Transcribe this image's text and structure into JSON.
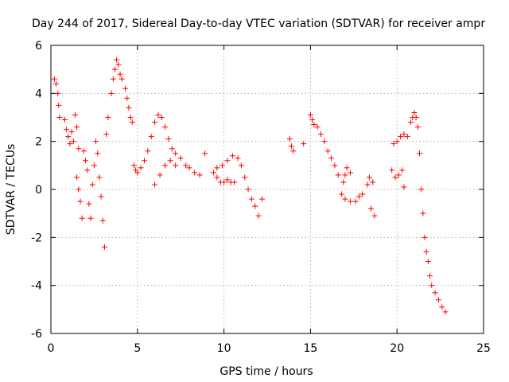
{
  "chart_data": {
    "type": "scatter",
    "title": "Day 244 of 2017, Sidereal Day-to-day VTEC variation (SDTVAR) for receiver ampr",
    "xlabel": "GPS time / hours",
    "ylabel": "SDTVAR / TECUs",
    "xlim": [
      0,
      25
    ],
    "ylim": [
      -6,
      6
    ],
    "x_ticks": [
      0,
      5,
      10,
      15,
      20,
      25
    ],
    "y_ticks": [
      -6,
      -4,
      -2,
      0,
      2,
      4,
      6
    ],
    "grid": true,
    "marker": "plus",
    "colors": {
      "points": "#ff0000",
      "axes": "#000000",
      "grid": "#a0a0a0",
      "background": "#ffffff"
    },
    "series": [
      {
        "name": "SDTVAR",
        "points": [
          [
            0.2,
            4.6
          ],
          [
            0.3,
            4.4
          ],
          [
            0.4,
            4.0
          ],
          [
            0.45,
            3.5
          ],
          [
            0.5,
            3.0
          ],
          [
            0.8,
            2.9
          ],
          [
            0.9,
            2.5
          ],
          [
            1.0,
            2.2
          ],
          [
            1.1,
            1.9
          ],
          [
            1.2,
            2.4
          ],
          [
            1.3,
            2.0
          ],
          [
            1.4,
            3.1
          ],
          [
            1.5,
            2.6
          ],
          [
            1.6,
            1.7
          ],
          [
            1.5,
            0.5
          ],
          [
            1.6,
            0.0
          ],
          [
            1.7,
            -0.5
          ],
          [
            1.8,
            -1.2
          ],
          [
            1.9,
            1.6
          ],
          [
            2.0,
            1.2
          ],
          [
            2.1,
            0.8
          ],
          [
            2.2,
            -0.6
          ],
          [
            2.3,
            -1.2
          ],
          [
            2.4,
            0.2
          ],
          [
            2.5,
            1.0
          ],
          [
            2.6,
            2.0
          ],
          [
            2.7,
            1.5
          ],
          [
            2.8,
            0.5
          ],
          [
            2.9,
            -0.3
          ],
          [
            3.0,
            -1.3
          ],
          [
            3.1,
            -2.4
          ],
          [
            3.2,
            2.3
          ],
          [
            3.3,
            3.0
          ],
          [
            3.5,
            4.0
          ],
          [
            3.6,
            4.6
          ],
          [
            3.7,
            5.0
          ],
          [
            3.8,
            5.4
          ],
          [
            3.9,
            5.2
          ],
          [
            4.0,
            4.8
          ],
          [
            4.1,
            4.6
          ],
          [
            4.3,
            4.2
          ],
          [
            4.4,
            3.8
          ],
          [
            4.5,
            3.4
          ],
          [
            4.6,
            3.0
          ],
          [
            4.7,
            2.8
          ],
          [
            4.8,
            1.0
          ],
          [
            4.9,
            0.8
          ],
          [
            5.0,
            0.7
          ],
          [
            5.2,
            0.9
          ],
          [
            5.4,
            1.2
          ],
          [
            5.6,
            1.6
          ],
          [
            5.8,
            2.2
          ],
          [
            6.0,
            2.8
          ],
          [
            6.2,
            3.1
          ],
          [
            6.4,
            3.0
          ],
          [
            6.6,
            2.6
          ],
          [
            6.8,
            2.1
          ],
          [
            7.0,
            1.7
          ],
          [
            7.2,
            1.5
          ],
          [
            6.0,
            0.2
          ],
          [
            6.3,
            0.6
          ],
          [
            6.6,
            1.0
          ],
          [
            6.9,
            1.2
          ],
          [
            7.2,
            1.0
          ],
          [
            7.5,
            1.3
          ],
          [
            7.8,
            1.0
          ],
          [
            8.0,
            0.9
          ],
          [
            8.3,
            0.7
          ],
          [
            8.6,
            0.6
          ],
          [
            8.9,
            1.5
          ],
          [
            9.4,
            0.7
          ],
          [
            9.6,
            0.5
          ],
          [
            9.8,
            0.3
          ],
          [
            10.0,
            0.3
          ],
          [
            10.2,
            0.4
          ],
          [
            10.4,
            0.3
          ],
          [
            10.6,
            0.3
          ],
          [
            9.6,
            0.9
          ],
          [
            9.9,
            1.0
          ],
          [
            10.2,
            1.2
          ],
          [
            10.5,
            1.4
          ],
          [
            10.8,
            1.3
          ],
          [
            11.0,
            1.0
          ],
          [
            11.2,
            0.5
          ],
          [
            11.4,
            0.0
          ],
          [
            11.6,
            -0.4
          ],
          [
            11.8,
            -0.7
          ],
          [
            12.0,
            -1.1
          ],
          [
            12.2,
            -0.4
          ],
          [
            13.8,
            2.1
          ],
          [
            13.9,
            1.8
          ],
          [
            14.0,
            1.6
          ],
          [
            14.6,
            1.9
          ],
          [
            15.0,
            3.1
          ],
          [
            15.1,
            2.9
          ],
          [
            15.2,
            2.7
          ],
          [
            15.4,
            2.6
          ],
          [
            15.6,
            2.3
          ],
          [
            15.8,
            2.0
          ],
          [
            16.0,
            1.6
          ],
          [
            16.2,
            1.3
          ],
          [
            16.4,
            1.0
          ],
          [
            16.6,
            0.6
          ],
          [
            16.9,
            0.3
          ],
          [
            17.0,
            0.6
          ],
          [
            17.1,
            0.9
          ],
          [
            17.3,
            0.7
          ],
          [
            16.8,
            -0.2
          ],
          [
            17.0,
            -0.4
          ],
          [
            17.3,
            -0.5
          ],
          [
            17.6,
            -0.5
          ],
          [
            17.8,
            -0.3
          ],
          [
            18.0,
            -0.2
          ],
          [
            18.3,
            0.2
          ],
          [
            18.4,
            0.5
          ],
          [
            18.6,
            0.3
          ],
          [
            18.5,
            -0.8
          ],
          [
            18.7,
            -1.1
          ],
          [
            19.7,
            0.8
          ],
          [
            19.9,
            0.5
          ],
          [
            20.1,
            0.6
          ],
          [
            20.3,
            0.8
          ],
          [
            20.4,
            0.1
          ],
          [
            19.8,
            1.9
          ],
          [
            20.0,
            2.0
          ],
          [
            20.2,
            2.2
          ],
          [
            20.4,
            2.3
          ],
          [
            20.6,
            2.2
          ],
          [
            20.8,
            2.8
          ],
          [
            20.9,
            3.0
          ],
          [
            21.0,
            3.2
          ],
          [
            21.1,
            3.0
          ],
          [
            21.2,
            2.6
          ],
          [
            21.3,
            1.5
          ],
          [
            21.4,
            0.0
          ],
          [
            21.5,
            -1.0
          ],
          [
            21.6,
            -2.0
          ],
          [
            21.7,
            -2.6
          ],
          [
            21.8,
            -3.0
          ],
          [
            21.9,
            -3.6
          ],
          [
            22.0,
            -4.0
          ],
          [
            22.2,
            -4.3
          ],
          [
            22.4,
            -4.6
          ],
          [
            22.6,
            -4.9
          ],
          [
            22.8,
            -5.1
          ]
        ]
      }
    ]
  }
}
